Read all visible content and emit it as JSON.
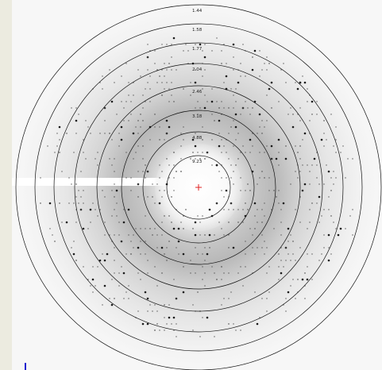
{
  "image": {
    "resolution_ring_labels": [
      "1.44",
      "1.58",
      "1.77",
      "2.04",
      "2.46",
      "3.18",
      "4.88",
      "9.23"
    ],
    "colors": {
      "background": "#ecebe0",
      "detector": "#ffffff",
      "rings": "#111111",
      "beam_center": "#e02020",
      "beamstop": "#ffffff",
      "corner_mark": "#1a1ad0"
    }
  }
}
